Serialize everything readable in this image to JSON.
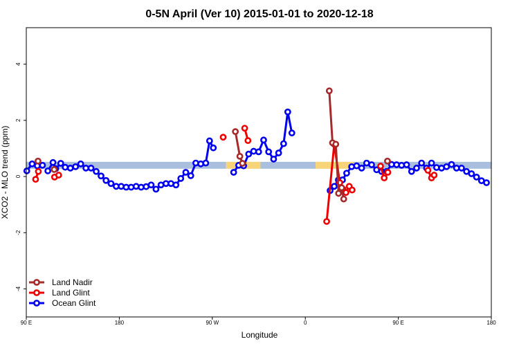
{
  "chart_data": {
    "type": "line",
    "title": "0-5N April (Ver 10)   2015-01-01 to 2020-12-18",
    "xlabel": "Longitude",
    "ylabel": "XCO2 - MLO trend (ppm)",
    "xlim": [
      -90,
      180
    ],
    "ylim": [
      -5.0,
      5.3
    ],
    "x_ticks": [
      {
        "value": -90,
        "label": "90 E"
      },
      {
        "value": -36,
        "label": "180"
      },
      {
        "value": 18,
        "label": "90 W"
      },
      {
        "value": 72,
        "label": "0"
      },
      {
        "value": 126,
        "label": "90 E"
      },
      {
        "value": 180,
        "label": "180"
      }
    ],
    "y_ticks": [
      {
        "value": -4,
        "label": "-4"
      },
      {
        "value": -2,
        "label": "-2"
      },
      {
        "value": 0,
        "label": "0"
      },
      {
        "value": 2,
        "label": "2"
      },
      {
        "value": 4,
        "label": "4"
      }
    ],
    "band": {
      "y": 0.4,
      "segments": [
        {
          "x0": -90,
          "x1": 26,
          "color": "#a9bfdd"
        },
        {
          "x0": 26,
          "x1": 46,
          "color": "#f7d478"
        },
        {
          "x0": 46,
          "x1": 78,
          "color": "#a9bfdd"
        },
        {
          "x0": 78,
          "x1": 100,
          "color": "#f7d478"
        },
        {
          "x0": 100,
          "x1": 180,
          "color": "#a9bfdd"
        }
      ]
    },
    "legend_position": "bottom-left",
    "series": [
      {
        "name": "Ocean Glint",
        "color": "#0000ee",
        "segments": [
          [
            [
              -89.7,
              0.2
            ],
            [
              -86.6,
              0.45
            ],
            [
              -83.6,
              0.38
            ],
            [
              -80.6,
              0.4
            ]
          ],
          [
            [
              -77.5,
              0.2
            ],
            [
              -74.5,
              0.5
            ],
            [
              -72.9,
              0.28
            ],
            [
              -70.0,
              0.47
            ],
            [
              -67.4,
              0.33
            ],
            [
              -64.4,
              0.3
            ],
            [
              -61.4,
              0.35
            ],
            [
              -58.4,
              0.45
            ],
            [
              -55.4,
              0.3
            ],
            [
              -52.4,
              0.3
            ],
            [
              -49.4,
              0.18
            ],
            [
              -46.6,
              0.02
            ],
            [
              -43.7,
              -0.14
            ],
            [
              -40.8,
              -0.25
            ],
            [
              -37.8,
              -0.35
            ],
            [
              -34.9,
              -0.35
            ],
            [
              -32.0,
              -0.38
            ],
            [
              -29.1,
              -0.38
            ],
            [
              -26.2,
              -0.35
            ],
            [
              -23.3,
              -0.38
            ],
            [
              -20.4,
              -0.36
            ],
            [
              -17.5,
              -0.3
            ],
            [
              -14.7,
              -0.45
            ],
            [
              -11.8,
              -0.3
            ],
            [
              -8.9,
              -0.25
            ],
            [
              -6.0,
              -0.25
            ],
            [
              -3.1,
              -0.3
            ],
            [
              -0.3,
              -0.07
            ],
            [
              2.6,
              0.15
            ],
            [
              5.5,
              0.03
            ],
            [
              8.4,
              0.48
            ],
            [
              11.3,
              0.45
            ],
            [
              14.2,
              0.48
            ],
            [
              16.4,
              1.27
            ],
            [
              18.6,
              1.02
            ]
          ],
          [
            [
              30.4,
              0.15
            ],
            [
              33.3,
              0.4
            ],
            [
              36.2,
              0.38
            ],
            [
              39.1,
              0.8
            ],
            [
              42.0,
              0.9
            ],
            [
              44.9,
              0.88
            ],
            [
              47.8,
              1.3
            ],
            [
              50.7,
              0.88
            ],
            [
              53.6,
              0.62
            ],
            [
              56.5,
              0.84
            ],
            [
              59.4,
              1.17
            ],
            [
              61.8,
              2.3
            ],
            [
              64.2,
              1.55
            ]
          ],
          [
            [
              86.4,
              -0.5
            ],
            [
              88.8,
              -0.35
            ],
            [
              91.2,
              -0.12
            ],
            [
              93.6,
              -0.12
            ],
            [
              96.0,
              0.12
            ],
            [
              98.9,
              0.35
            ],
            [
              101.8,
              0.38
            ],
            [
              104.7,
              0.3
            ],
            [
              107.6,
              0.48
            ],
            [
              110.5,
              0.42
            ],
            [
              113.4,
              0.24
            ],
            [
              116.3,
              0.18
            ],
            [
              119.2,
              0.18
            ],
            [
              122.1,
              0.43
            ],
            [
              125.0,
              0.42
            ],
            [
              127.9,
              0.4
            ],
            [
              130.8,
              0.42
            ],
            [
              133.7,
              0.18
            ],
            [
              136.6,
              0.3
            ],
            [
              139.5,
              0.48
            ],
            [
              142.4,
              0.3
            ],
            [
              145.3,
              0.48
            ],
            [
              148.2,
              0.32
            ],
            [
              151.1,
              0.3
            ],
            [
              154.0,
              0.35
            ],
            [
              156.9,
              0.43
            ],
            [
              159.8,
              0.3
            ],
            [
              162.7,
              0.3
            ],
            [
              165.6,
              0.18
            ],
            [
              168.5,
              0.1
            ],
            [
              171.4,
              -0.02
            ],
            [
              174.3,
              -0.15
            ],
            [
              177.2,
              -0.22
            ]
          ]
        ]
      },
      {
        "name": "Land Glint",
        "color": "#ee0000",
        "segments": [
          [
            [
              -84.6,
              -0.1
            ],
            [
              -83.0,
              0.18
            ]
          ],
          [
            [
              -73.6,
              -0.02
            ],
            [
              -71.2,
              0.05
            ]
          ],
          [
            [
              24.3,
              1.4
            ]
          ],
          [
            [
              36.8,
              1.72
            ],
            [
              38.7,
              1.28
            ]
          ],
          [
            [
              84.4,
              -1.6
            ],
            [
              88.8,
              1.15
            ],
            [
              92.0,
              -0.22
            ],
            [
              93.9,
              -0.45
            ],
            [
              95.6,
              -0.57
            ],
            [
              97.5,
              -0.35
            ],
            [
              99.2,
              -0.48
            ]
          ],
          [
            [
              115.7,
              0.37
            ],
            [
              117.8,
              -0.05
            ],
            [
              119.9,
              0.15
            ]
          ],
          [
            [
              143.2,
              0.22
            ],
            [
              145.3,
              -0.05
            ],
            [
              146.8,
              0.05
            ]
          ]
        ]
      },
      {
        "name": "Land Nadir",
        "color": "#a52a2a",
        "segments": [
          [
            [
              -83.2,
              0.55
            ]
          ],
          [
            [
              -73.8,
              0.25
            ]
          ],
          [
            [
              31.4,
              1.6
            ],
            [
              34.0,
              0.72
            ],
            [
              35.5,
              0.47
            ]
          ],
          [
            [
              85.9,
              3.05
            ],
            [
              87.8,
              1.2
            ],
            [
              89.7,
              1.15
            ],
            [
              91.3,
              -0.6
            ],
            [
              93.1,
              -0.4
            ],
            [
              94.3,
              -0.8
            ]
          ],
          [
            [
              119.7,
              0.55
            ]
          ]
        ]
      }
    ]
  },
  "legend": {
    "items": [
      {
        "name": "Land Nadir",
        "color": "#a52a2a"
      },
      {
        "name": "Land Glint",
        "color": "#ee0000"
      },
      {
        "name": "Ocean Glint",
        "color": "#0000ee"
      }
    ]
  }
}
